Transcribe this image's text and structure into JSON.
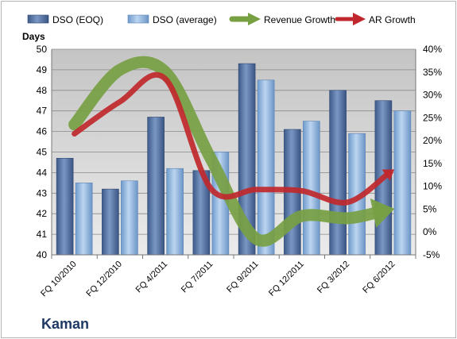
{
  "company": "Kaman",
  "chart_data": {
    "type": "bar",
    "categories": [
      "FQ 10/2010",
      "FQ 12/2010",
      "FQ 4/2011",
      "FQ 7/2011",
      "FQ 9/2011",
      "FQ 12/2011",
      "FQ 3/2012",
      "FQ 6/2012"
    ],
    "ylabel": "Days",
    "ylim": [
      40,
      50
    ],
    "y2lim": [
      -5,
      40
    ],
    "y2_unit": "%",
    "grid": true,
    "legend": "top",
    "series": [
      {
        "name": "DSO (EOQ)",
        "type": "bar",
        "axis": "left",
        "color": "#4f6fa0",
        "values": [
          44.7,
          43.2,
          46.7,
          44.1,
          49.3,
          46.1,
          48.0,
          47.5
        ]
      },
      {
        "name": "DSO (average)",
        "type": "bar",
        "axis": "left",
        "color": "#8db4e2",
        "values": [
          43.5,
          43.6,
          44.2,
          45.0,
          48.5,
          46.5,
          45.9,
          47.0
        ]
      },
      {
        "name": "Revenue Growth",
        "type": "line",
        "axis": "right",
        "color": "#77a043",
        "values": [
          23.5,
          35.5,
          35.0,
          16.0,
          -1.5,
          3.5,
          3.0,
          5.0
        ]
      },
      {
        "name": "AR Growth",
        "type": "line",
        "axis": "right",
        "color": "#c0282d",
        "values": [
          21.5,
          28.5,
          33.5,
          9.5,
          9.3,
          9.0,
          6.5,
          13.5
        ]
      }
    ]
  }
}
